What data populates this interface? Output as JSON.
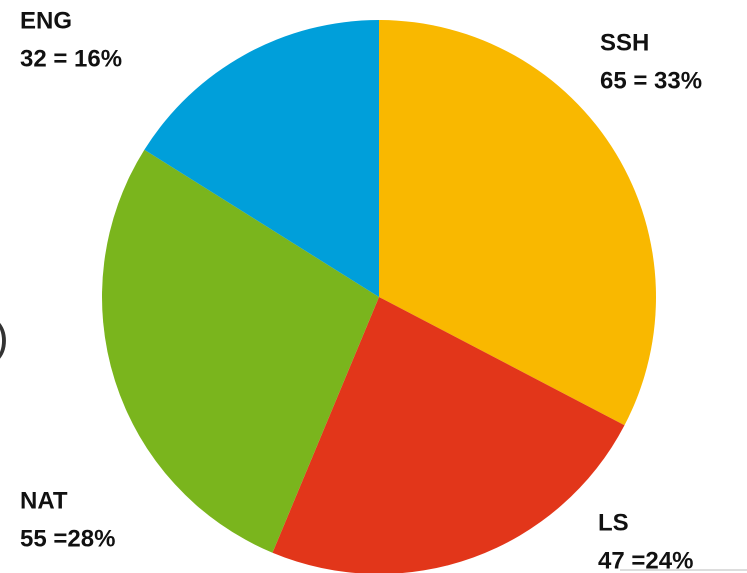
{
  "chart_data": {
    "type": "pie",
    "categories": [
      "SSH",
      "LS",
      "NAT",
      "ENG"
    ],
    "values": [
      65,
      47,
      55,
      32
    ],
    "value_labels": [
      "65 = 33%",
      "47 =24%",
      "55 =28%",
      "32 = 16%"
    ],
    "colors": [
      "#f9b800",
      "#e2361a",
      "#7ab51d",
      "#009fda"
    ],
    "fragment": ")"
  }
}
